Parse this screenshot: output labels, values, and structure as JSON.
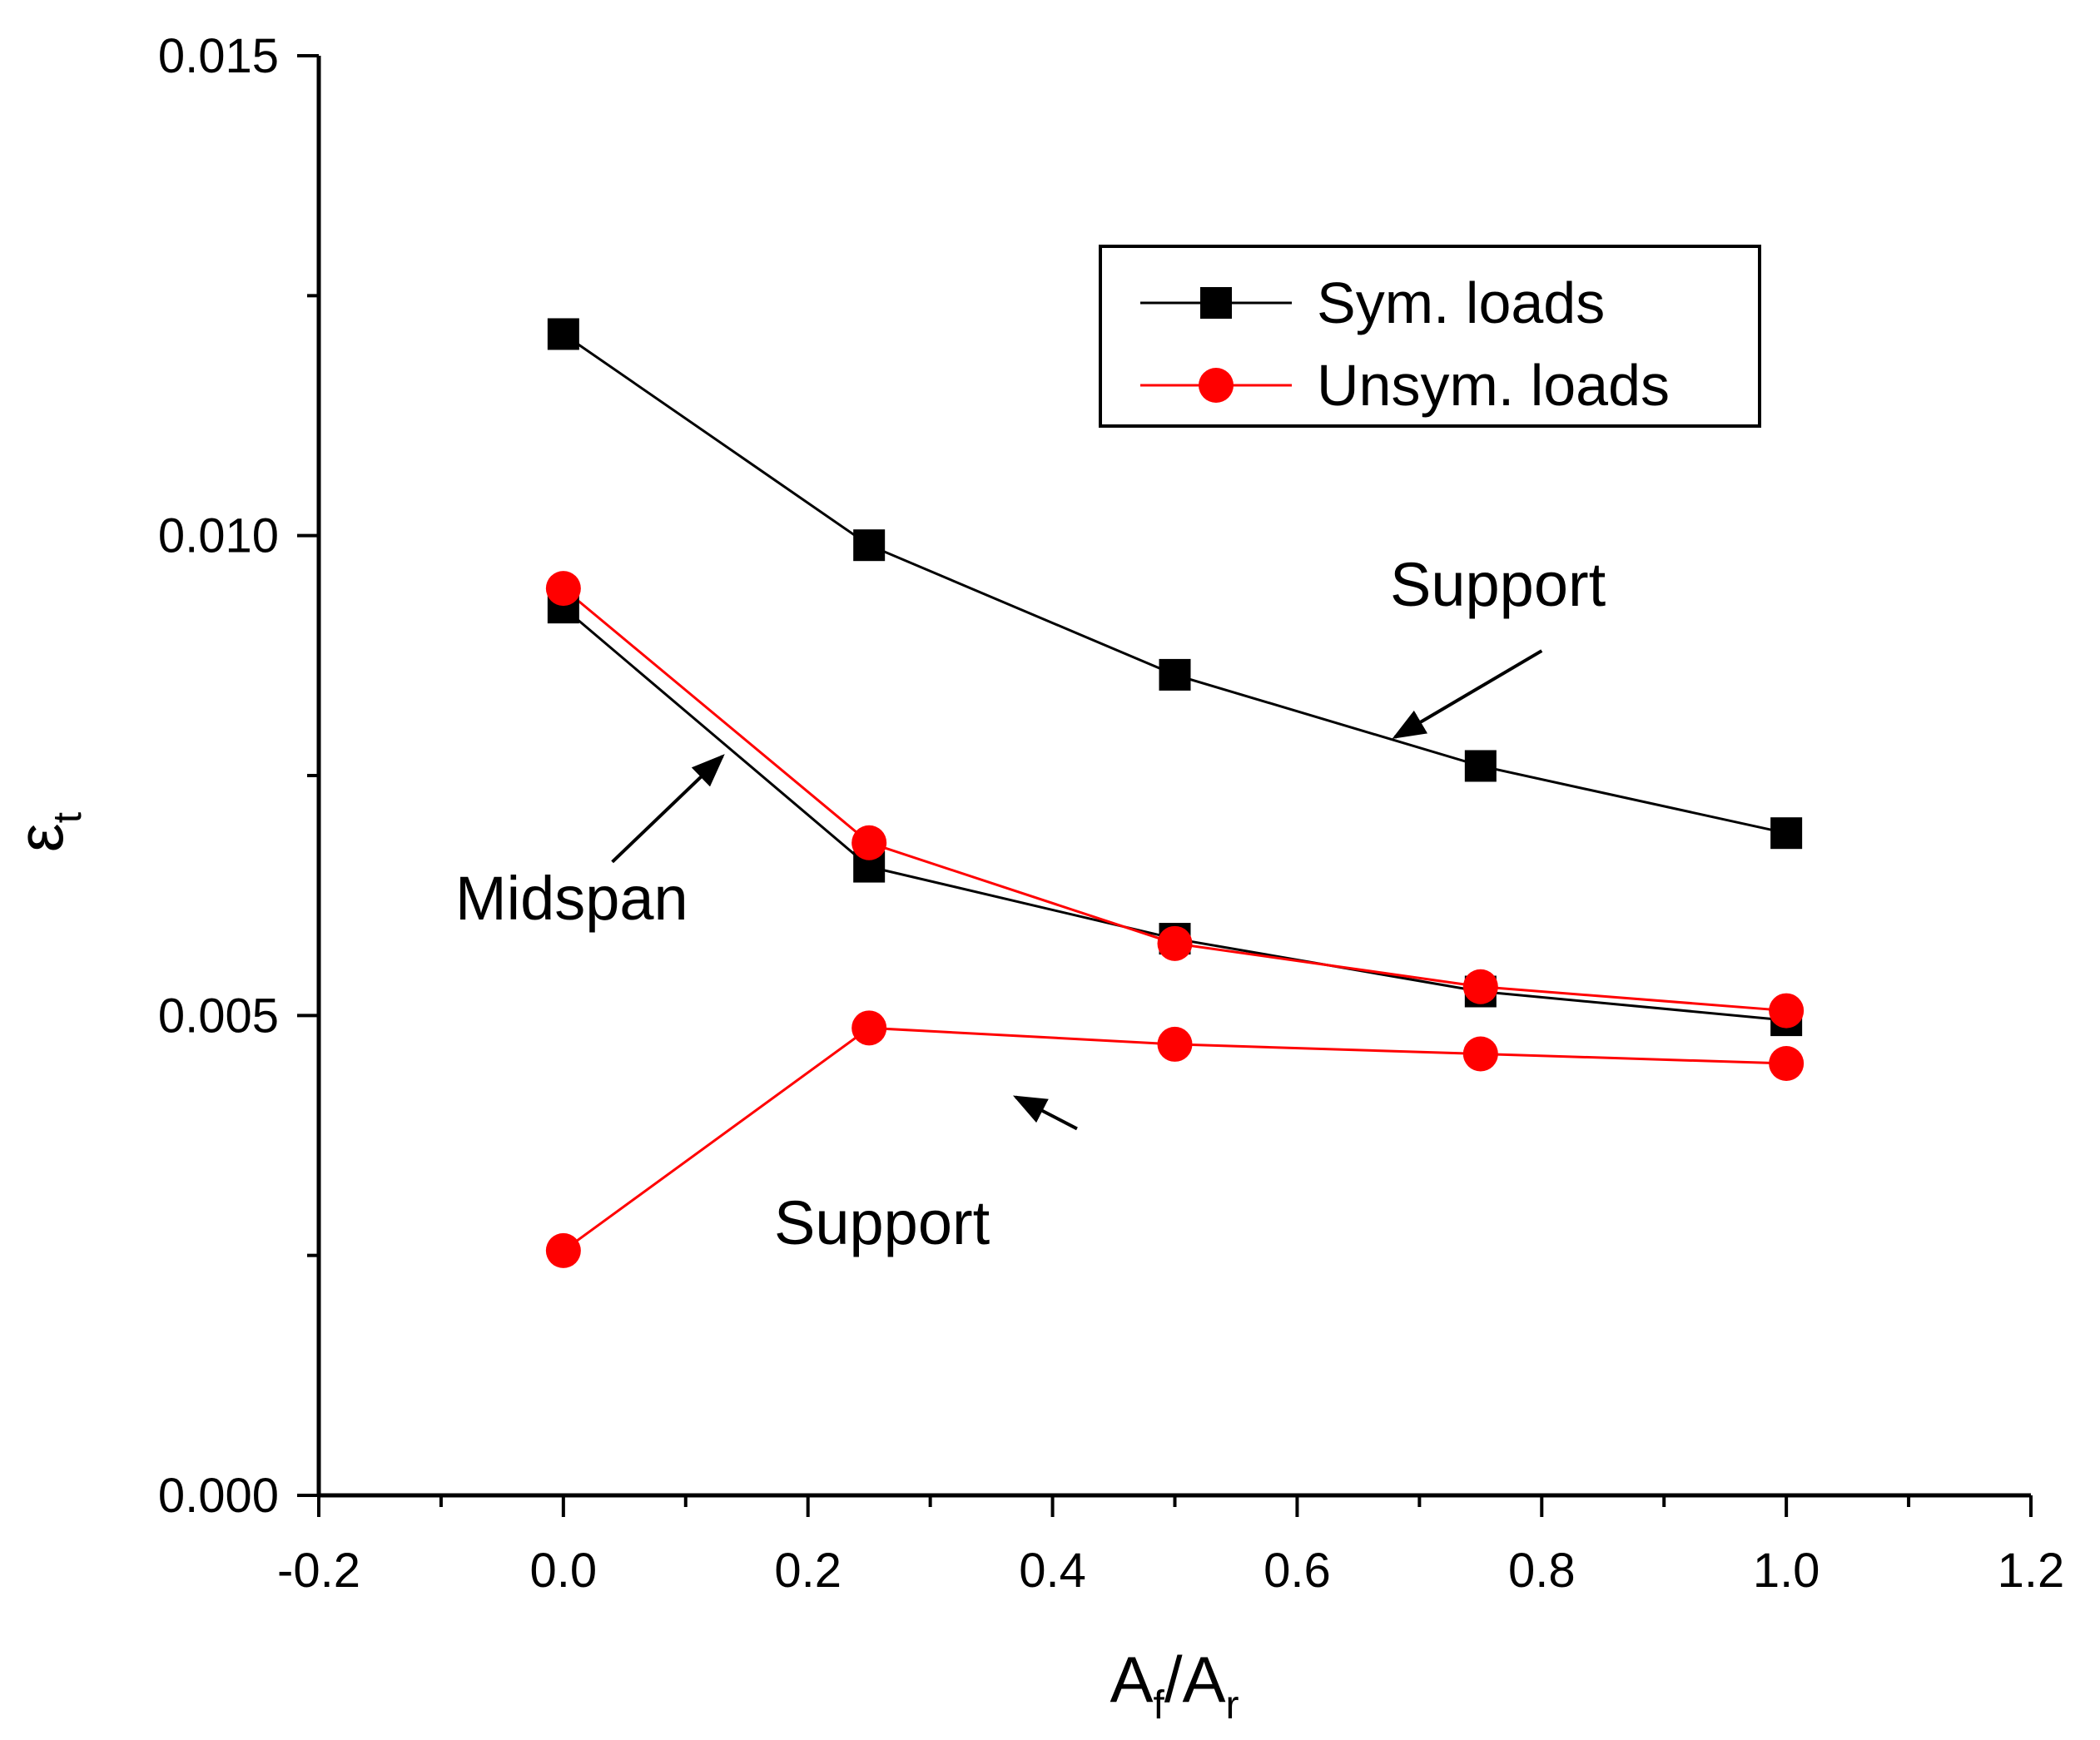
{
  "chart_data": {
    "type": "line",
    "title": "",
    "xlabel": {
      "main": "A",
      "sub1": "f",
      "sep": "/A",
      "sub2": "r"
    },
    "ylabel": {
      "main": "ε",
      "sub": "t"
    },
    "xlim": [
      -0.2,
      1.2
    ],
    "ylim": [
      0.0,
      0.015
    ],
    "xticks": [
      -0.2,
      0.0,
      0.2,
      0.4,
      0.6,
      0.8,
      1.0,
      1.2
    ],
    "xtick_labels": [
      "-0.2",
      "0.0",
      "0.2",
      "0.4",
      "0.6",
      "0.8",
      "1.0",
      "1.2"
    ],
    "yticks": [
      0.0,
      0.005,
      0.01,
      0.015
    ],
    "ytick_labels": [
      "0.000",
      "0.005",
      "0.010",
      "0.015"
    ],
    "grid": false,
    "legend_position": "top-right",
    "series": [
      {
        "name": "Sym. loads",
        "group": "Support",
        "marker": "square",
        "color": "#000000",
        "x": [
          0.0,
          0.25,
          0.5,
          0.75,
          1.0
        ],
        "y": [
          0.0121,
          0.0099,
          0.00855,
          0.0076,
          0.0069
        ]
      },
      {
        "name": "Sym. loads",
        "group": "Midspan",
        "marker": "square",
        "color": "#000000",
        "x": [
          0.0,
          0.25,
          0.5,
          0.75,
          1.0
        ],
        "y": [
          0.00925,
          0.00655,
          0.0058,
          0.00525,
          0.00495
        ]
      },
      {
        "name": "Unsym. loads",
        "group": "Midspan",
        "marker": "circle",
        "color": "#ff0000",
        "x": [
          0.0,
          0.25,
          0.5,
          0.75,
          1.0
        ],
        "y": [
          0.00945,
          0.0068,
          0.00575,
          0.0053,
          0.00505
        ]
      },
      {
        "name": "Unsym. loads",
        "group": "Support",
        "marker": "circle",
        "color": "#ff0000",
        "x": [
          0.0,
          0.25,
          0.5,
          0.75,
          1.0
        ],
        "y": [
          0.00255,
          0.00487,
          0.0047,
          0.0046,
          0.0045
        ]
      }
    ],
    "legend": [
      {
        "label": "Sym. loads",
        "marker": "square",
        "color": "#000000"
      },
      {
        "label": "Unsym. loads",
        "marker": "circle",
        "color": "#ff0000"
      }
    ],
    "annotations": [
      {
        "text": "Support",
        "arrow_from": [
          0.8,
          0.0088
        ],
        "arrow_to": [
          0.68,
          0.0079
        ]
      },
      {
        "text": "Midspan",
        "arrow_from": [
          0.04,
          0.0066
        ],
        "arrow_to": [
          0.13,
          0.0077
        ]
      },
      {
        "text": "Support",
        "arrow_from": [
          0.42,
          0.00382
        ],
        "arrow_to": [
          0.37,
          0.00415
        ]
      }
    ]
  }
}
